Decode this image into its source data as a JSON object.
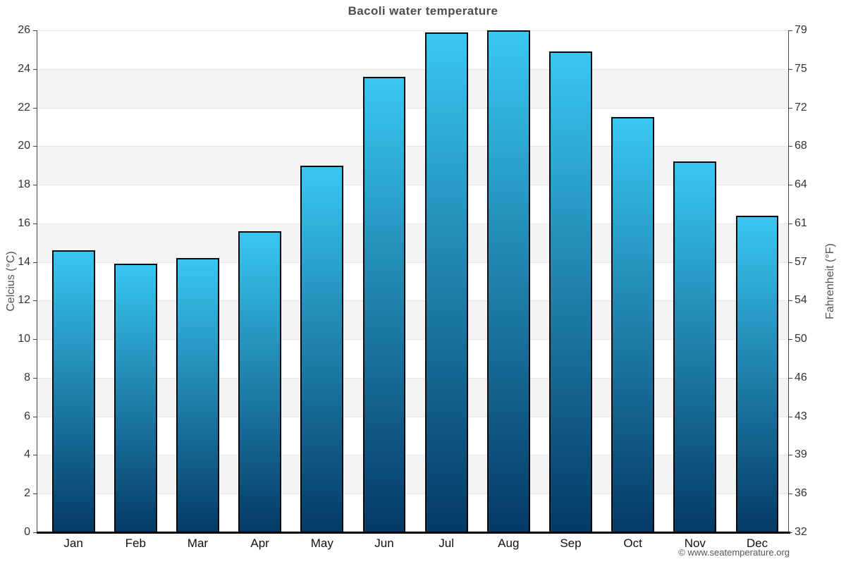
{
  "title": "Bacoli water temperature",
  "axes": {
    "left_label": "Celcius (°C)",
    "right_label": "Fahrenheit (°F)"
  },
  "footer": {
    "copyright": "© www.seatemperature.org"
  },
  "chart_data": {
    "type": "bar",
    "title": "Bacoli water temperature",
    "categories": [
      "Jan",
      "Feb",
      "Mar",
      "Apr",
      "May",
      "Jun",
      "Jul",
      "Aug",
      "Sep",
      "Oct",
      "Nov",
      "Dec"
    ],
    "values": [
      14.6,
      13.9,
      14.2,
      15.6,
      19.0,
      23.6,
      25.9,
      26.0,
      24.9,
      21.5,
      19.2,
      16.4
    ],
    "unit": "°C",
    "ylabel_left": "Celcius (°C)",
    "ylabel_right": "Fahrenheit (°F)",
    "ylim": [
      0,
      26
    ],
    "band_step": 2,
    "celsius_ticks": [
      26,
      24,
      22,
      20,
      18,
      16,
      14,
      12,
      10,
      8,
      6,
      4,
      2,
      0
    ],
    "fahrenheit_tick_labels": [
      "79",
      "75",
      "72",
      "68",
      "64",
      "61",
      "57",
      "54",
      "50",
      "46",
      "43",
      "39",
      "36",
      "32"
    ],
    "grid": true,
    "legend_position": "none",
    "colors": {
      "bar_gradient_top": "#38c7f2",
      "bar_gradient_bottom": "#053a66",
      "bar_border": "#0a0a0a",
      "band_alt": "#f4f4f4",
      "gridline": "#e7e7e7",
      "axis_line": "#444444",
      "baseline": "#000000",
      "title_text": "#4d4d4d",
      "tick_text": "#333333",
      "axis_label_text": "#555555",
      "footer_text": "#555555"
    }
  }
}
